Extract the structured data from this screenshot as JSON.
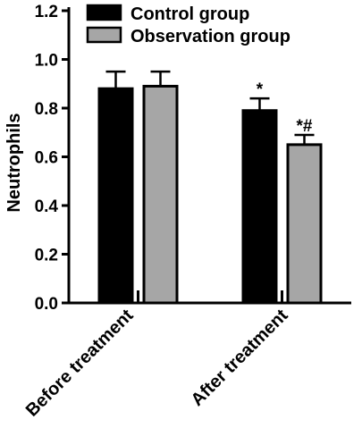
{
  "chart_data": {
    "type": "bar",
    "categories": [
      "Before treatment",
      "After treatment"
    ],
    "series": [
      {
        "name": "Control group",
        "values": [
          0.88,
          0.79
        ],
        "errors": [
          0.07,
          0.05
        ],
        "annotations": [
          "",
          "*"
        ],
        "color": "#000000"
      },
      {
        "name": "Observation group",
        "values": [
          0.89,
          0.65
        ],
        "errors": [
          0.06,
          0.04
        ],
        "annotations": [
          "",
          "*#"
        ],
        "color": "#a6a6a6"
      }
    ],
    "ylabel": "Neutrophils",
    "ylim": [
      0.0,
      1.2
    ],
    "yticks": [
      "0.0",
      "0.2",
      "0.4",
      "0.6",
      "0.8",
      "1.0",
      "1.2"
    ],
    "legend_position": "top-left",
    "grid": false
  }
}
